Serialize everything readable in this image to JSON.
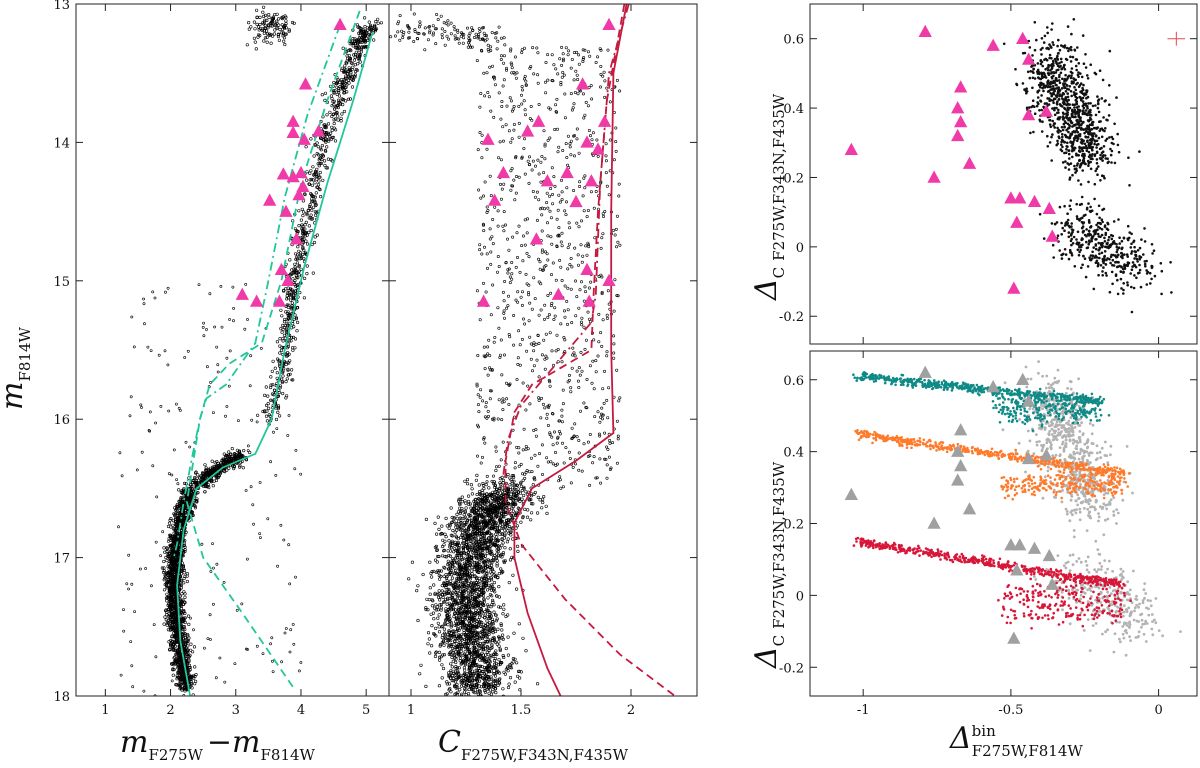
{
  "chart_data": [
    {
      "panel": "cmd",
      "type": "scatter",
      "xlabel": {
        "main": "m",
        "sub1": "F275W",
        "sep": "−m",
        "sub2": "F814W"
      },
      "ylabel": {
        "main": "m",
        "sub": "F814W"
      },
      "xlim": [
        0.55,
        5.35
      ],
      "ylim": [
        18,
        13
      ],
      "xticks": [
        1,
        2,
        3,
        4,
        5
      ],
      "yticks": [
        13,
        14,
        15,
        16,
        17,
        18
      ],
      "grid": false,
      "stars": {
        "ms": [
          [
            2.32,
            16.5
          ],
          [
            2.15,
            16.75
          ],
          [
            2.07,
            17.0
          ],
          [
            2.05,
            17.2
          ],
          [
            2.08,
            17.45
          ],
          [
            2.15,
            17.7
          ],
          [
            2.25,
            17.95
          ]
        ],
        "sgb": [
          [
            3.1,
            16.27
          ],
          [
            2.85,
            16.32
          ],
          [
            2.6,
            16.4
          ],
          [
            2.4,
            16.47
          ]
        ],
        "rgb": [
          [
            3.55,
            16.0
          ],
          [
            3.75,
            15.5
          ],
          [
            3.9,
            15.0
          ],
          [
            4.1,
            14.5
          ],
          [
            4.35,
            14.0
          ],
          [
            4.6,
            13.6
          ],
          [
            4.9,
            13.3
          ],
          [
            5.05,
            13.15
          ]
        ],
        "hb": [
          [
            3.3,
            13.15
          ],
          [
            3.8,
            13.2
          ]
        ],
        "hb_spread": [
          0.5,
          0.06
        ]
      },
      "triangles": [
        [
          4.6,
          13.15
        ],
        [
          4.07,
          13.58
        ],
        [
          3.88,
          13.85
        ],
        [
          3.88,
          13.93
        ],
        [
          4.27,
          13.92
        ],
        [
          4.05,
          13.98
        ],
        [
          3.73,
          14.23
        ],
        [
          4.0,
          14.22
        ],
        [
          3.88,
          14.25
        ],
        [
          4.03,
          14.32
        ],
        [
          3.97,
          14.38
        ],
        [
          3.52,
          14.42
        ],
        [
          3.77,
          14.5
        ],
        [
          3.93,
          14.7
        ],
        [
          3.7,
          14.92
        ],
        [
          3.8,
          15.0
        ],
        [
          3.1,
          15.1
        ],
        [
          3.32,
          15.15
        ],
        [
          3.67,
          15.15
        ]
      ],
      "isochrones": [
        {
          "style": "solid",
          "color": "#1fc79a",
          "points": [
            [
              5.1,
              13.2
            ],
            [
              4.8,
              13.7
            ],
            [
              4.4,
              14.3
            ],
            [
              4.05,
              14.9
            ],
            [
              3.75,
              15.5
            ],
            [
              3.55,
              16.0
            ],
            [
              3.3,
              16.25
            ],
            [
              2.8,
              16.35
            ],
            [
              2.4,
              16.5
            ],
            [
              2.2,
              16.8
            ],
            [
              2.1,
              17.2
            ],
            [
              2.15,
              17.6
            ],
            [
              2.3,
              18.0
            ]
          ]
        },
        {
          "style": "dashed",
          "color": "#1fc79a",
          "points": [
            [
              4.9,
              13.05
            ],
            [
              4.4,
              13.7
            ],
            [
              4.0,
              14.3
            ],
            [
              3.7,
              15.0
            ],
            [
              3.4,
              15.45
            ],
            [
              2.9,
              15.6
            ],
            [
              2.6,
              15.75
            ],
            [
              2.45,
              16.0
            ],
            [
              2.35,
              16.3
            ],
            [
              2.25,
              16.6
            ],
            [
              2.5,
              17.0
            ],
            [
              3.1,
              17.4
            ],
            [
              3.9,
              17.95
            ]
          ]
        },
        {
          "style": "dashdot",
          "color": "#1fc79a",
          "points": [
            [
              4.6,
              13.15
            ],
            [
              4.1,
              13.8
            ],
            [
              3.75,
              14.4
            ],
            [
              3.5,
              15.0
            ],
            [
              3.3,
              15.45
            ],
            [
              2.85,
              15.75
            ],
            [
              2.55,
              15.85
            ],
            [
              2.45,
              16.0
            ],
            [
              2.32,
              16.3
            ],
            [
              2.2,
              16.6
            ],
            [
              2.1,
              16.9
            ],
            [
              2.05,
              17.0
            ]
          ]
        }
      ]
    },
    {
      "panel": "chromosome",
      "type": "scatter",
      "xlabel": {
        "main": "C",
        "sub": "F275W,F343N,F435W"
      },
      "xlim": [
        0.9,
        2.3
      ],
      "ylim": [
        18,
        13
      ],
      "xticks": [
        1,
        1.5,
        2
      ],
      "yticks": [
        13,
        14,
        15,
        16,
        17,
        18
      ],
      "grid": false,
      "stars": {
        "ms": [
          [
            1.45,
            16.5
          ],
          [
            1.3,
            16.8
          ],
          [
            1.25,
            17.2
          ],
          [
            1.27,
            17.6
          ],
          [
            1.32,
            18.0
          ]
        ],
        "rgb_x": [
          1.3,
          1.95
        ],
        "rgb_y": [
          13.3,
          16.5
        ],
        "hb": [
          [
            0.95,
            13.18
          ],
          [
            1.4,
            13.25
          ]
        ]
      },
      "triangles": [
        [
          1.9,
          13.15
        ],
        [
          1.78,
          13.58
        ],
        [
          1.58,
          13.85
        ],
        [
          1.88,
          13.85
        ],
        [
          1.53,
          13.92
        ],
        [
          1.35,
          13.98
        ],
        [
          1.8,
          14.0
        ],
        [
          1.85,
          14.05
        ],
        [
          1.42,
          14.22
        ],
        [
          1.62,
          14.28
        ],
        [
          1.71,
          14.22
        ],
        [
          1.38,
          14.42
        ],
        [
          1.82,
          14.28
        ],
        [
          1.75,
          14.43
        ],
        [
          1.57,
          14.7
        ],
        [
          1.8,
          14.92
        ],
        [
          1.9,
          15.0
        ],
        [
          1.33,
          15.15
        ],
        [
          1.67,
          15.1
        ],
        [
          1.81,
          15.15
        ]
      ],
      "isochrones": [
        {
          "style": "solid",
          "color": "#c41a3f",
          "points": [
            [
              1.98,
              13.0
            ],
            [
              1.92,
              13.5
            ],
            [
              1.91,
              14.5
            ],
            [
              1.91,
              15.5
            ],
            [
              1.92,
              16.1
            ],
            [
              1.75,
              16.3
            ],
            [
              1.55,
              16.5
            ],
            [
              1.47,
              16.75
            ],
            [
              1.47,
              17.0
            ],
            [
              1.53,
              17.4
            ],
            [
              1.62,
              17.8
            ],
            [
              1.68,
              18.0
            ]
          ]
        },
        {
          "style": "dashed",
          "color": "#c41a3f",
          "points": [
            [
              1.97,
              13.0
            ],
            [
              1.89,
              13.7
            ],
            [
              1.85,
              14.5
            ],
            [
              1.83,
              15.1
            ],
            [
              1.82,
              15.5
            ],
            [
              1.55,
              15.75
            ],
            [
              1.47,
              15.95
            ],
            [
              1.43,
              16.3
            ],
            [
              1.43,
              16.6
            ],
            [
              1.5,
              16.9
            ],
            [
              1.7,
              17.3
            ],
            [
              1.95,
              17.7
            ],
            [
              2.2,
              18.0
            ]
          ]
        },
        {
          "style": "dashdot",
          "color": "#c41a3f",
          "points": [
            [
              1.99,
              13.0
            ],
            [
              1.9,
              13.5
            ],
            [
              1.86,
              14.3
            ],
            [
              1.84,
              15.1
            ],
            [
              1.82,
              15.3
            ],
            [
              1.5,
              15.9
            ],
            [
              1.44,
              16.15
            ],
            [
              1.42,
              16.4
            ]
          ]
        }
      ]
    },
    {
      "panel": "chromosome-map",
      "type": "scatter",
      "ylabel": {
        "main": "Δ",
        "sub1": "C",
        "sub2": "F275W,F343N,F435W"
      },
      "xlim": [
        -1.18,
        0.13
      ],
      "ylim": [
        -0.28,
        0.7
      ],
      "yticks": [
        -0.2,
        0,
        0.2,
        0.4,
        0.6
      ],
      "xticks": [
        -1,
        -0.5,
        0
      ],
      "show_xtick_labels": false,
      "grid": false,
      "stars": {
        "blob1": {
          "cx": [
            -0.38,
            -0.22
          ],
          "cy": [
            0.55,
            0.25
          ]
        },
        "blob2": {
          "cx": [
            -0.3,
            -0.05
          ],
          "cy": [
            0.07,
            -0.08
          ]
        }
      },
      "triangles": [
        [
          -1.04,
          0.28
        ],
        [
          -0.79,
          0.62
        ],
        [
          -0.76,
          0.2
        ],
        [
          -0.56,
          0.58
        ],
        [
          -0.46,
          0.6
        ],
        [
          -0.44,
          0.54
        ],
        [
          -0.67,
          0.46
        ],
        [
          -0.68,
          0.4
        ],
        [
          -0.67,
          0.36
        ],
        [
          -0.68,
          0.32
        ],
        [
          -0.64,
          0.24
        ],
        [
          -0.44,
          0.38
        ],
        [
          -0.38,
          0.39
        ],
        [
          -0.5,
          0.14
        ],
        [
          -0.47,
          0.14
        ],
        [
          -0.42,
          0.13
        ],
        [
          -0.37,
          0.11
        ],
        [
          -0.48,
          0.07
        ],
        [
          -0.36,
          0.03
        ],
        [
          -0.49,
          -0.12
        ]
      ],
      "errorbar": {
        "x": 0.06,
        "y": 0.6,
        "dx": 0.03,
        "dy": 0.02,
        "color": "#e04a4a"
      },
      "triangle_color": "#f03aa7"
    },
    {
      "panel": "simulated-binaries",
      "type": "scatter",
      "xlabel": {
        "main": "Δ",
        "sup": "bin",
        "sub": "F275W,F814W"
      },
      "ylabel": {
        "main": "Δ",
        "sub1": "C",
        "sub2": "F275W,F343N,F435W"
      },
      "xlim": [
        -1.18,
        0.13
      ],
      "ylim": [
        -0.28,
        0.68
      ],
      "yticks": [
        -0.2,
        0,
        0.2,
        0.4,
        0.6
      ],
      "xticks": [
        -1,
        -0.5,
        0
      ],
      "grid": false,
      "series": [
        {
          "color": "#0f8a86",
          "points": [
            [
              -1.02,
              0.61
            ],
            [
              -0.2,
              0.54
            ],
            [
              -0.55,
              0.55
            ],
            [
              -0.4,
              0.48
            ]
          ]
        },
        {
          "color": "#ff7a2a",
          "points": [
            [
              -1.02,
              0.45
            ],
            [
              -0.12,
              0.34
            ],
            [
              -0.52,
              0.33
            ],
            [
              -0.42,
              0.28
            ]
          ]
        },
        {
          "color": "#d81638",
          "points": [
            [
              -1.02,
              0.15
            ],
            [
              -0.12,
              0.03
            ],
            [
              -0.52,
              0.04
            ],
            [
              -0.42,
              -0.08
            ]
          ]
        }
      ],
      "background_color": "#b3b3b3",
      "triangles_color": "#a0a0a0"
    }
  ]
}
